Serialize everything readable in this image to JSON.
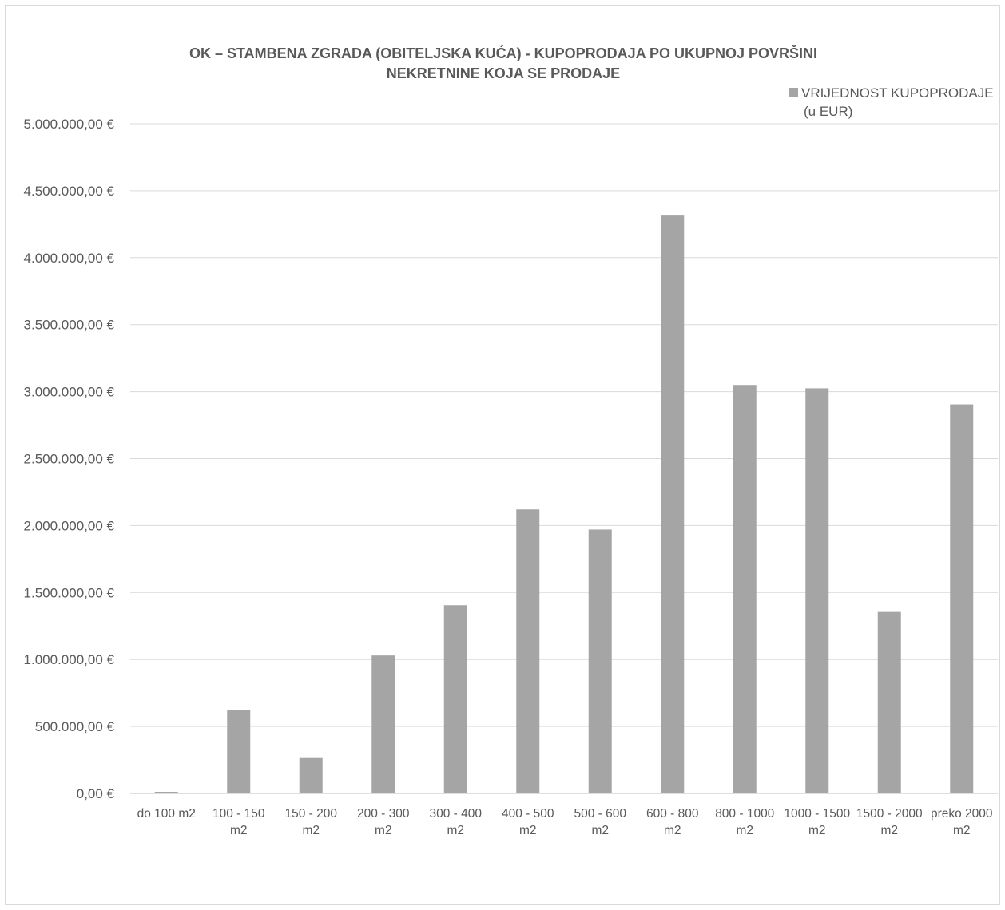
{
  "chart_data": {
    "type": "bar",
    "title_lines": [
      "OK – STAMBENA ZGRADA (OBITELJSKA KUĆA) - KUPOPRODAJA PO UKUPNOJ POVRŠINI",
      "NEKRETNINE KOJA SE PRODAJE"
    ],
    "legend": {
      "label_lines": [
        "VRIJEDNOST KUPOPRODAJE",
        "(u EUR)"
      ],
      "placement": "top-right"
    },
    "categories": [
      [
        "do 100 m2"
      ],
      [
        "100 - 150",
        "m2"
      ],
      [
        "150 - 200",
        "m2"
      ],
      [
        "200 - 300",
        "m2"
      ],
      [
        "300 - 400",
        "m2"
      ],
      [
        "400 - 500",
        "m2"
      ],
      [
        "500 - 600",
        "m2"
      ],
      [
        "600 - 800",
        "m2"
      ],
      [
        "800 - 1000",
        "m2"
      ],
      [
        "1000 - 1500",
        "m2"
      ],
      [
        "1500 - 2000",
        "m2"
      ],
      [
        "preko 2000",
        "m2"
      ]
    ],
    "series": [
      {
        "name": "VRIJEDNOST KUPOPRODAJE (u EUR)",
        "color": "#a5a5a5",
        "values": [
          12000,
          620000,
          270000,
          1030000,
          1405000,
          2120000,
          1970000,
          4320000,
          3050000,
          3025000,
          1355000,
          2905000
        ]
      }
    ],
    "ylim": [
      0,
      5000000
    ],
    "y_ticks": [
      {
        "value": 0,
        "label": "0,00 €"
      },
      {
        "value": 500000,
        "label": "500.000,00 €"
      },
      {
        "value": 1000000,
        "label": "1.000.000,00 €"
      },
      {
        "value": 1500000,
        "label": "1.500.000,00 €"
      },
      {
        "value": 2000000,
        "label": "2.000.000,00 €"
      },
      {
        "value": 2500000,
        "label": "2.500.000,00 €"
      },
      {
        "value": 3000000,
        "label": "3.000.000,00 €"
      },
      {
        "value": 3500000,
        "label": "3.500.000,00 €"
      },
      {
        "value": 4000000,
        "label": "4.000.000,00 €"
      },
      {
        "value": 4500000,
        "label": "4.500.000,00 €"
      },
      {
        "value": 5000000,
        "label": "5.000.000,00 €"
      }
    ],
    "grid": true,
    "colors": {
      "gridline": "#d9d9d9",
      "axis": "#bfbfbf",
      "text": "#595959"
    }
  }
}
